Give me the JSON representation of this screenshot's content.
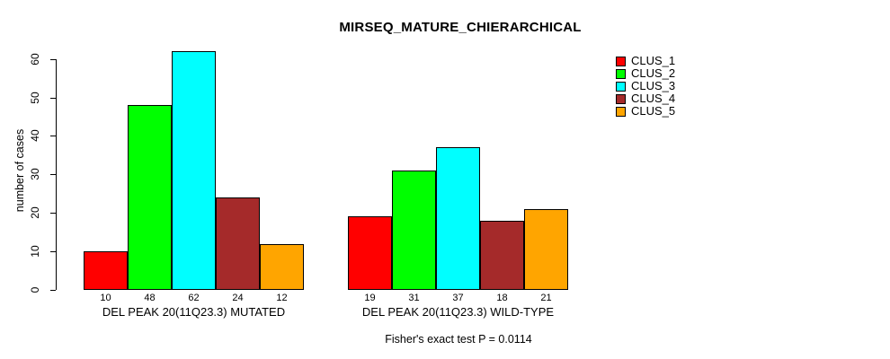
{
  "title": "MIRSEQ_MATURE_CHIERARCHICAL",
  "chart_data": {
    "type": "bar",
    "title": "MIRSEQ_MATURE_CHIERARCHICAL",
    "xlabel": "",
    "ylabel": "number of cases",
    "annotation": "Fisher's exact test P = 0.0114",
    "categories": [
      "DEL PEAK 20(11Q23.3) MUTATED",
      "DEL PEAK 20(11Q23.3) WILD-TYPE"
    ],
    "series": [
      {
        "name": "CLUS_1",
        "color": "#FF0000",
        "values": [
          10,
          19
        ]
      },
      {
        "name": "CLUS_2",
        "color": "#00FF00",
        "values": [
          48,
          31
        ]
      },
      {
        "name": "CLUS_3",
        "color": "#00FFFF",
        "values": [
          62,
          37
        ]
      },
      {
        "name": "CLUS_4",
        "color": "#A52A2A",
        "values": [
          24,
          18
        ]
      },
      {
        "name": "CLUS_5",
        "color": "#FFA500",
        "values": [
          12,
          21
        ]
      }
    ],
    "bar_value_labels_shown": true,
    "yticks": [
      0,
      10,
      20,
      30,
      40,
      50,
      60
    ],
    "ylim": [
      0,
      62
    ],
    "grid": false,
    "legend_position": "right",
    "axis_color": "#000000",
    "background_color": "#FFFFFF"
  }
}
